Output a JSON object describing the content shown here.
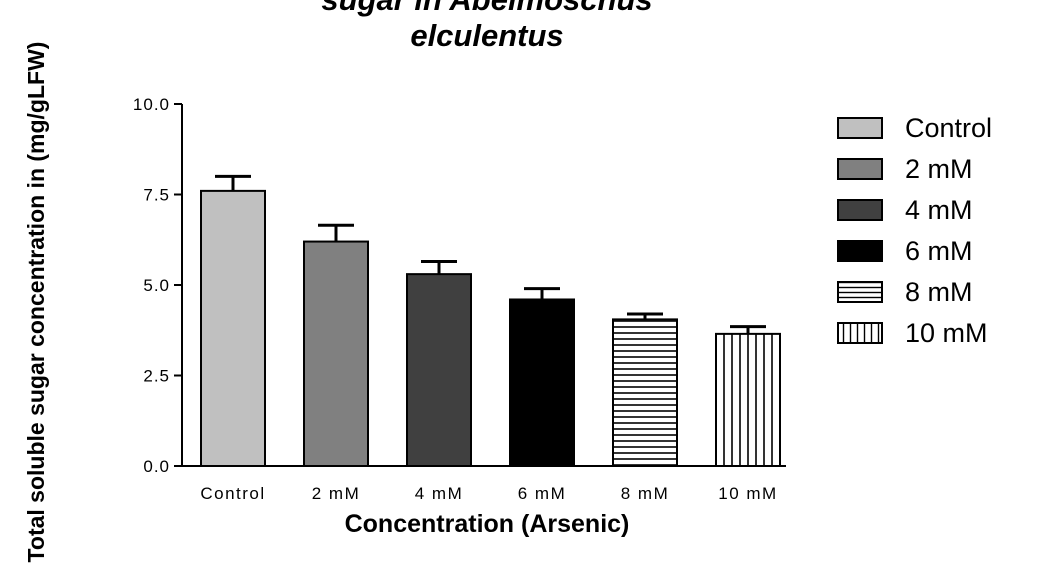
{
  "chart_data": {
    "type": "bar",
    "title_lines": [
      "sugar in Abelmoschus",
      "elculentus"
    ],
    "ylabel": "Total soluble sugar concentration in (mg/gLFW)",
    "xlabel": "Concentration (Arsenic)",
    "categories": [
      "Control",
      "2 mM",
      "4 mM",
      "6 mM",
      "8 mM",
      "10 mM"
    ],
    "values": [
      7.6,
      6.2,
      5.3,
      4.6,
      4.05,
      3.65
    ],
    "errors": [
      0.4,
      0.45,
      0.35,
      0.3,
      0.15,
      0.2
    ],
    "ylim": [
      0,
      10
    ],
    "yticks": [
      "0.0",
      "2.5",
      "5.0",
      "7.5",
      "10.0"
    ],
    "ytick_values": [
      0,
      2.5,
      5,
      7.5,
      10
    ],
    "legend_position": "right",
    "legend": [
      "Control",
      "2 mM",
      "4 mM",
      "6 mM",
      "8 mM",
      "10 mM"
    ],
    "fills": [
      "light-gray",
      "medium-gray",
      "dark-gray",
      "black",
      "horizontal-stripes",
      "vertical-stripes"
    ],
    "colors": [
      "#c0c0c0",
      "#808080",
      "#404040",
      "#000000",
      "#ffffff",
      "#ffffff"
    ],
    "grid": false
  }
}
